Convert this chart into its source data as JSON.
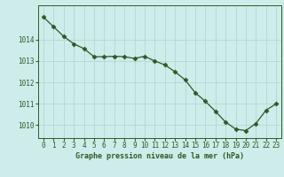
{
  "x": [
    0,
    1,
    2,
    3,
    4,
    5,
    6,
    7,
    8,
    9,
    10,
    11,
    12,
    13,
    14,
    15,
    16,
    17,
    18,
    19,
    20,
    21,
    22,
    23
  ],
  "y": [
    1015.05,
    1014.6,
    1014.15,
    1013.8,
    1013.58,
    1013.2,
    1013.2,
    1013.22,
    1013.2,
    1013.12,
    1013.22,
    1013.0,
    1012.82,
    1012.5,
    1012.12,
    1011.52,
    1011.12,
    1010.65,
    1010.15,
    1009.82,
    1009.75,
    1010.08,
    1010.7,
    1011.0
  ],
  "line_color": "#2d5a27",
  "marker": "D",
  "marker_size": 2.5,
  "bg_color": "#ceecea",
  "grid_color": "#b0d8d5",
  "xlabel": "Graphe pression niveau de la mer (hPa)",
  "xlabel_color": "#2d5a27",
  "tick_color": "#2d5a27",
  "axis_color": "#2d5a27",
  "ylim": [
    1009.4,
    1015.6
  ],
  "yticks": [
    1010,
    1011,
    1012,
    1013,
    1014
  ],
  "xticks": [
    0,
    1,
    2,
    3,
    4,
    5,
    6,
    7,
    8,
    9,
    10,
    11,
    12,
    13,
    14,
    15,
    16,
    17,
    18,
    19,
    20,
    21,
    22,
    23
  ]
}
